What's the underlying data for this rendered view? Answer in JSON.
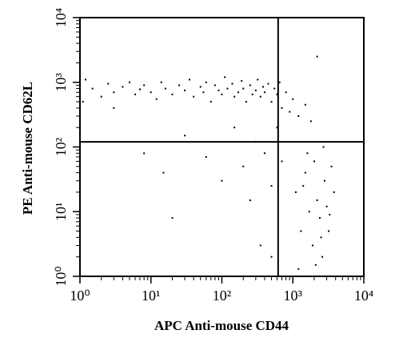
{
  "chart_data": {
    "type": "scatter",
    "xlabel": "APC Anti-mouse CD44",
    "ylabel": "PE Anti-mouse CD62L",
    "xscale": "log",
    "yscale": "log",
    "xlim": [
      1,
      10000
    ],
    "ylim": [
      1,
      10000
    ],
    "xticks": [
      {
        "value": 1,
        "label": "10⁰"
      },
      {
        "value": 10,
        "label": "10¹"
      },
      {
        "value": 100,
        "label": "10²"
      },
      {
        "value": 1000,
        "label": "10³"
      },
      {
        "value": 10000,
        "label": "10⁴"
      }
    ],
    "yticks": [
      {
        "value": 1,
        "label": "10⁰"
      },
      {
        "value": 10,
        "label": "10¹"
      },
      {
        "value": 100,
        "label": "10²"
      },
      {
        "value": 1000,
        "label": "10³"
      },
      {
        "value": 10000,
        "label": "10⁴"
      }
    ],
    "quadrant_gates": {
      "x": 620,
      "y": 120
    },
    "color": "#000000",
    "x": [
      1,
      1,
      1.1,
      1.2,
      1.5,
      2,
      2.5,
      3,
      3,
      4,
      5,
      6,
      7,
      8,
      10,
      12,
      14,
      16,
      20,
      25,
      30,
      35,
      40,
      50,
      55,
      60,
      70,
      80,
      90,
      100,
      110,
      120,
      140,
      150,
      170,
      190,
      200,
      220,
      250,
      270,
      300,
      320,
      350,
      380,
      400,
      450,
      500,
      550,
      600,
      650,
      700,
      800,
      900,
      1000,
      1200,
      1500,
      1800,
      2200,
      8,
      15,
      30,
      60,
      100,
      150,
      200,
      250,
      300,
      400,
      500,
      600,
      700,
      350,
      500,
      20,
      1100,
      1300,
      1500,
      1700,
      1900,
      2000,
      2200,
      2400,
      2600,
      2800,
      3000,
      3200,
      3500,
      3800,
      2100,
      1200,
      2500,
      1600,
      2700,
      1400,
      3300
    ],
    "values": [
      700,
      900,
      500,
      1100,
      800,
      600,
      950,
      700,
      400,
      850,
      1000,
      650,
      780,
      900,
      700,
      550,
      1000,
      800,
      650,
      900,
      750,
      1100,
      600,
      850,
      700,
      1000,
      500,
      900,
      750,
      650,
      1200,
      800,
      950,
      600,
      700,
      1050,
      800,
      500,
      900,
      650,
      750,
      1100,
      600,
      850,
      700,
      950,
      500,
      800,
      650,
      1000,
      400,
      700,
      350,
      550,
      300,
      450,
      250,
      2500,
      80,
      40,
      150,
      70,
      30,
      200,
      50,
      15,
      120,
      80,
      25,
      200,
      60,
      3,
      2,
      8,
      20,
      5,
      40,
      10,
      3,
      60,
      15,
      8,
      2,
      30,
      12,
      5,
      50,
      20,
      1.5,
      1.3,
      4,
      80,
      100,
      25,
      9
    ]
  }
}
